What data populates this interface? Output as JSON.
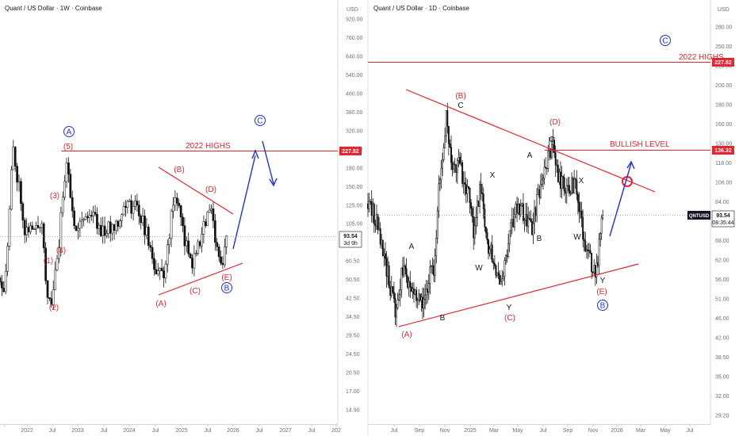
{
  "colors": {
    "red": "#e5252f",
    "blue": "#1c31d6",
    "candle": "#111111",
    "axis_text": "#6b6f78",
    "grid": "#e1e3e8",
    "price_line": "#9598a1"
  },
  "chart_data": [
    {
      "type": "candlestick",
      "title": "Quant / US Dollar · 1W · Coinbase",
      "currency": "USD",
      "y_scale": "log",
      "y_ticks": [
        "920.00",
        "760.00",
        "640.00",
        "540.00",
        "460.00",
        "380.00",
        "320.00",
        "260.00",
        "180.00",
        "150.00",
        "125.00",
        "105.00",
        "73.00",
        "60.50",
        "50.50",
        "42.50",
        "34.50",
        "29.50",
        "24.50",
        "20.50",
        "17.00",
        "14.90"
      ],
      "x_ticks": [
        "2022",
        "Jul",
        "2023",
        "Jul",
        "2024",
        "Jul",
        "2025",
        "Jul",
        "2026",
        "Jul",
        "2027",
        "Jul",
        "202"
      ],
      "price_tags": [
        {
          "label": "227.82",
          "kind": "level"
        },
        {
          "label": "93.54",
          "kind": "last"
        },
        {
          "label": "3d 9h",
          "kind": "countdown"
        }
      ],
      "levels": [
        {
          "label": "2022 HIGHS",
          "value": 227.82
        }
      ],
      "annotations": [
        "A",
        "(5)",
        "(3)",
        "(4)",
        "(1)",
        "(2)",
        "(A)",
        "(B)",
        "(C)",
        "(D)",
        "(E)",
        "B",
        "C"
      ],
      "close_path": [
        [
          "2021-06",
          60
        ],
        [
          "2021-07",
          55
        ],
        [
          "2021-08",
          95
        ],
        [
          "2021-09",
          240
        ],
        [
          "2021-10",
          180
        ],
        [
          "2021-11",
          140
        ],
        [
          "2021-12",
          95
        ],
        [
          "2022-01",
          105
        ],
        [
          "2022-02",
          95
        ],
        [
          "2022-03",
          105
        ],
        [
          "2022-04",
          110
        ],
        [
          "2022-05",
          58
        ],
        [
          "2022-06",
          42
        ],
        [
          "2022-07",
          60
        ],
        [
          "2022-08",
          80
        ],
        [
          "2022-09",
          150
        ],
        [
          "2022-10",
          220
        ],
        [
          "2022-11",
          120
        ],
        [
          "2022-12",
          105
        ],
        [
          "2023-01",
          110
        ],
        [
          "2023-04",
          120
        ],
        [
          "2023-06",
          100
        ],
        [
          "2023-08",
          100
        ],
        [
          "2023-10",
          110
        ],
        [
          "2023-12",
          130
        ],
        [
          "2024-03",
          125
        ],
        [
          "2024-05",
          95
        ],
        [
          "2024-07",
          65
        ],
        [
          "2024-09",
          62
        ],
        [
          "2024-11",
          120
        ],
        [
          "2024-12",
          150
        ],
        [
          "2025-01",
          110
        ],
        [
          "2025-03",
          75
        ],
        [
          "2025-04",
          70
        ],
        [
          "2025-06",
          95
        ],
        [
          "2025-08",
          125
        ],
        [
          "2025-10",
          80
        ],
        [
          "2025-11",
          68
        ],
        [
          "2025-12",
          93.54
        ]
      ]
    },
    {
      "type": "candlestick",
      "title": "Quant / US Dollar · 1D · Coinbase",
      "currency": "USD",
      "symbol": "QNTUSD",
      "y_scale": "log",
      "y_ticks": [
        "280.00",
        "250.00",
        "220.00",
        "200.00",
        "180.00",
        "160.00",
        "130.00",
        "118.00",
        "106.00",
        "84.00",
        "76.00",
        "68.00",
        "62.00",
        "56.00",
        "51.00",
        "46.00",
        "42.00",
        "38.50",
        "35.00",
        "32.00",
        "29.20"
      ],
      "x_ticks": [
        "Jul",
        "Sep",
        "Nov",
        "2025",
        "Mar",
        "May",
        "Jul",
        "Sep",
        "Nov",
        "2026",
        "Mar",
        "May",
        "Jul"
      ],
      "price_tags": [
        {
          "label": "227.82",
          "kind": "level"
        },
        {
          "label": "136.32",
          "kind": "level"
        },
        {
          "label": "93.54",
          "kind": "last"
        },
        {
          "label": "08:35:44",
          "kind": "countdown"
        }
      ],
      "levels": [
        {
          "label": "2022 HIGHS",
          "value": 227.82
        },
        {
          "label": "BULLISH LEVEL",
          "value": 136.32
        }
      ],
      "annotations": [
        "(A)",
        "(B)",
        "(C)",
        "(D)",
        "(E)",
        "A",
        "B",
        "C",
        "W",
        "X",
        "Y",
        "B",
        "C"
      ],
      "close_path": [
        [
          "2024-06-01",
          100
        ],
        [
          "2024-06-20",
          92
        ],
        [
          "2024-07-05",
          75
        ],
        [
          "2024-07-20",
          65
        ],
        [
          "2024-08-05",
          52
        ],
        [
          "2024-08-20",
          68
        ],
        [
          "2024-09-05",
          62
        ],
        [
          "2024-09-25",
          60
        ],
        [
          "2024-10-10",
          55
        ],
        [
          "2024-10-25",
          68
        ],
        [
          "2024-11-05",
          70
        ],
        [
          "2024-11-15",
          110
        ],
        [
          "2024-12-02",
          165
        ],
        [
          "2024-12-15",
          125
        ],
        [
          "2025-01-01",
          125
        ],
        [
          "2025-01-20",
          110
        ],
        [
          "2025-02-05",
          85
        ],
        [
          "2025-02-20",
          110
        ],
        [
          "2025-03-10",
          80
        ],
        [
          "2025-04-01",
          68
        ],
        [
          "2025-04-10",
          60
        ],
        [
          "2025-05-05",
          90
        ],
        [
          "2025-05-25",
          100
        ],
        [
          "2025-06-20",
          85
        ],
        [
          "2025-07-10",
          110
        ],
        [
          "2025-07-25",
          125
        ],
        [
          "2025-08-10",
          140
        ],
        [
          "2025-08-25",
          115
        ],
        [
          "2025-09-15",
          110
        ],
        [
          "2025-10-01",
          112
        ],
        [
          "2025-10-10",
          95
        ],
        [
          "2025-10-25",
          80
        ],
        [
          "2025-11-05",
          72
        ],
        [
          "2025-11-20",
          68
        ],
        [
          "2025-12-05",
          93.54
        ]
      ]
    }
  ]
}
